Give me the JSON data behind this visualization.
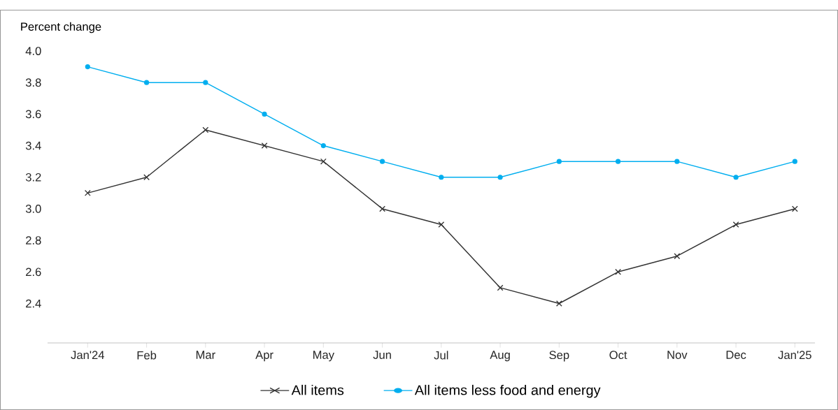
{
  "chart_data": {
    "type": "line",
    "ylabel": "Percent change",
    "categories": [
      "Jan'24",
      "Feb",
      "Mar",
      "Apr",
      "May",
      "Jun",
      "Jul",
      "Aug",
      "Sep",
      "Oct",
      "Nov",
      "Dec",
      "Jan'25"
    ],
    "series": [
      {
        "name": "All items",
        "color": "#333333",
        "marker": "cross",
        "values": [
          3.1,
          3.2,
          3.5,
          3.4,
          3.3,
          3.0,
          2.9,
          2.5,
          2.4,
          2.6,
          2.7,
          2.9,
          3.0
        ]
      },
      {
        "name": "All items less food and energy",
        "color": "#00aeef",
        "marker": "circle",
        "values": [
          3.9,
          3.8,
          3.8,
          3.6,
          3.4,
          3.3,
          3.2,
          3.2,
          3.3,
          3.3,
          3.3,
          3.2,
          3.3
        ]
      }
    ],
    "ylim": [
      2.15,
      4.0
    ],
    "yticks": [
      {
        "value": 2.4,
        "label": "2.4"
      },
      {
        "value": 2.6,
        "label": "2.6"
      },
      {
        "value": 2.8,
        "label": "2.8"
      },
      {
        "value": 3.0,
        "label": "3.0"
      },
      {
        "value": 3.2,
        "label": "3.2"
      },
      {
        "value": 3.4,
        "label": "3.4"
      },
      {
        "value": 3.6,
        "label": "3.6"
      },
      {
        "value": 3.8,
        "label": "3.8"
      },
      {
        "value": 4.0,
        "label": "4.0"
      }
    ],
    "legend": "bottom",
    "grid": false
  }
}
